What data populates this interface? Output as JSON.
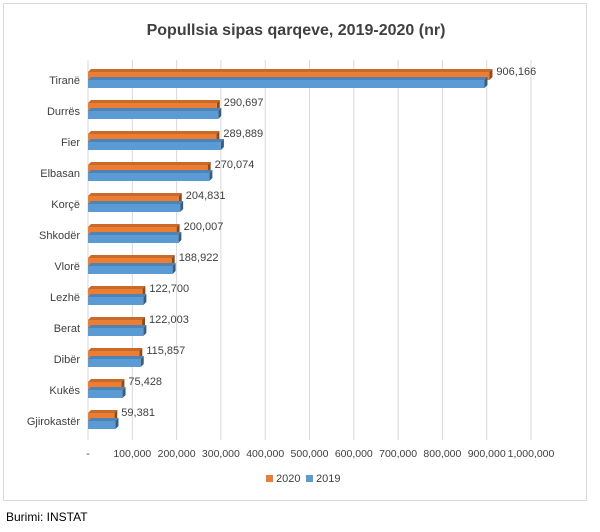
{
  "chart_data": {
    "type": "bar",
    "orientation": "horizontal",
    "title": "Popullsia sipas qarqeve, 2019-2020 (nr)",
    "categories": [
      "Tiranë",
      "Durrës",
      "Fier",
      "Elbasan",
      "Korçë",
      "Shkodër",
      "Vlorë",
      "Lezhë",
      "Berat",
      "Dibër",
      "Kukës",
      "Gjirokastër"
    ],
    "series": [
      {
        "name": "2020",
        "color": "#ED7D31",
        "values": [
          906166,
          290697,
          289889,
          270074,
          204831,
          200007,
          188922,
          122700,
          122003,
          115857,
          75428,
          59381
        ]
      },
      {
        "name": "2019",
        "color": "#5B9BD5",
        "values": [
          895000,
          294000,
          300000,
          274000,
          208000,
          204000,
          191000,
          125000,
          125000,
          119000,
          78000,
          62000
        ]
      }
    ],
    "data_labels": [
      "906,166",
      "290,697",
      "289,889",
      "270,074",
      "204,831",
      "200,007",
      "188,922",
      "122,700",
      "122,003",
      "115,857",
      "75,428",
      "59,381"
    ],
    "xlim": [
      0,
      1000000
    ],
    "x_ticks": [
      0,
      100000,
      200000,
      300000,
      400000,
      500000,
      600000,
      700000,
      800000,
      900000,
      1000000
    ],
    "x_tick_labels": [
      "-",
      "100,000",
      "200,000",
      "300,000",
      "400,000",
      "500,000",
      "600,000",
      "700,000",
      "800,000",
      "900,000",
      "1,000,000"
    ],
    "grid": true,
    "legend_position": "bottom"
  },
  "source_note": "Burimi: INSTAT"
}
